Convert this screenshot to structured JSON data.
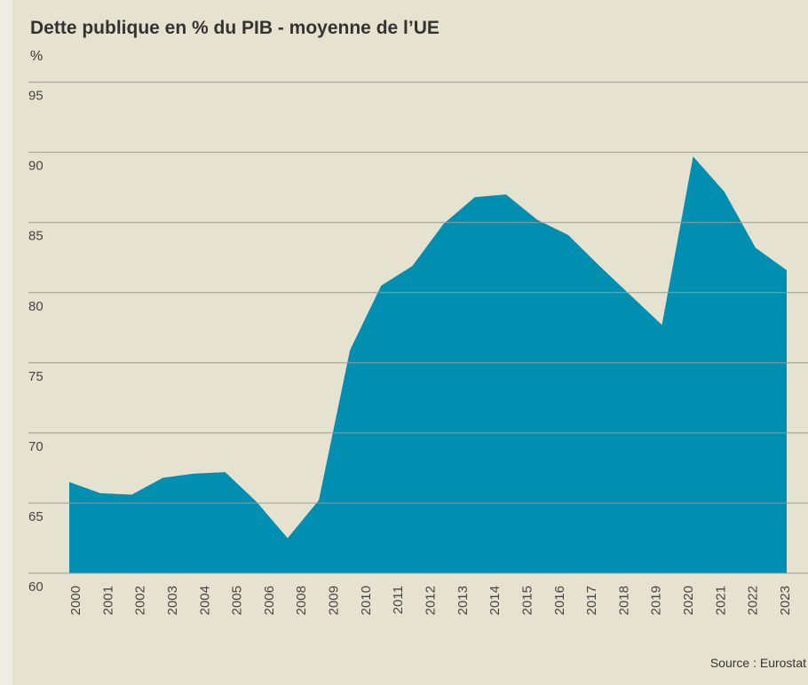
{
  "chart_data": {
    "type": "area",
    "title": "Dette publique en % du PIB - moyenne de l’UE",
    "unit": "%",
    "source": "Source : Eurostat",
    "categories": [
      "2000",
      "2001",
      "2002",
      "2003",
      "2004",
      "2005",
      "2006",
      null,
      "2008",
      "2009",
      "2010",
      "2011",
      "2012",
      "2013",
      "2014",
      "2015",
      "2016",
      "2017",
      "2018",
      "2019",
      "2020",
      "2021",
      "2022",
      "2023"
    ],
    "values": [
      66.5,
      65.7,
      65.6,
      66.8,
      67.1,
      67.2,
      65.1,
      62.5,
      65.2,
      75.9,
      80.5,
      81.9,
      84.9,
      86.8,
      87.0,
      85.2,
      84.1,
      81.9,
      79.8,
      77.7,
      89.7,
      87.2,
      83.2,
      81.6
    ],
    "color": "#008fb1",
    "ylim": [
      60,
      97
    ],
    "yticks": [
      60,
      65,
      70,
      75,
      80,
      85,
      90,
      95
    ],
    "grid": true
  }
}
